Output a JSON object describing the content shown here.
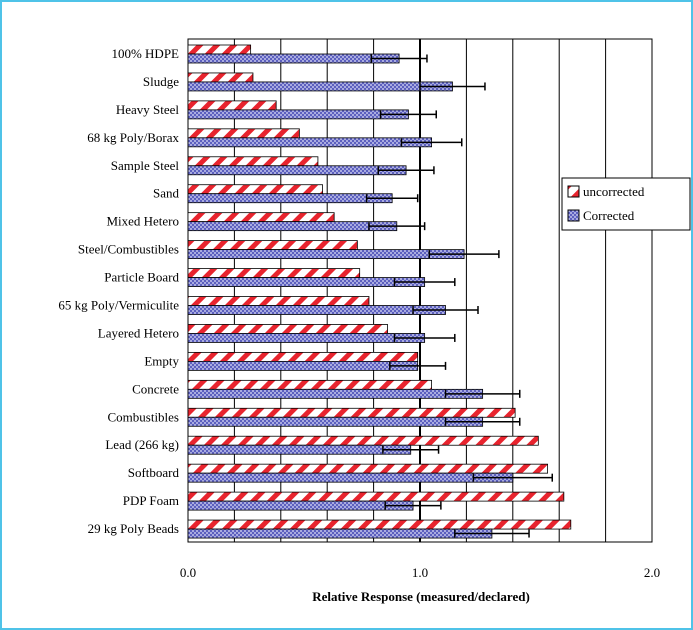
{
  "chart_data": {
    "type": "bar",
    "orientation": "horizontal",
    "title": "",
    "xlabel": "Relative Response (measured/declared)",
    "ylabel": "",
    "xlim": [
      0,
      2.0
    ],
    "x_ticks": [
      "0.0",
      "1.0",
      "2.0"
    ],
    "grid": "vertical lines every 0.2",
    "legend_position": "right",
    "categories": [
      "100% HDPE",
      "Sludge",
      "Heavy Steel",
      "68 kg Poly/Borax",
      "Sample Steel",
      "Sand",
      "Mixed Hetero",
      "Steel/Combustibles",
      "Particle Board",
      "65 kg Poly/Vermiculite",
      "Layered Hetero",
      "Empty",
      "Concrete",
      "Combustibles",
      "Lead  (266 kg)",
      "Softboard",
      "PDP Foam",
      "29 kg Poly Beads"
    ],
    "series": [
      {
        "name": "uncorrected",
        "color": "#e8242e",
        "pattern": "diagonal-stripes",
        "values": [
          0.27,
          0.28,
          0.38,
          0.48,
          0.56,
          0.58,
          0.63,
          0.73,
          0.74,
          0.78,
          0.86,
          0.99,
          1.05,
          1.41,
          1.51,
          1.55,
          1.62,
          1.65
        ]
      },
      {
        "name": "Corrected",
        "color": "#6a6ec8",
        "pattern": "crosshatch",
        "values": [
          0.91,
          1.14,
          0.95,
          1.05,
          0.94,
          0.88,
          0.9,
          1.19,
          1.02,
          1.11,
          1.02,
          0.99,
          1.27,
          1.27,
          0.96,
          1.4,
          0.97,
          1.31
        ],
        "error": [
          0.12,
          0.14,
          0.12,
          0.13,
          0.12,
          0.11,
          0.12,
          0.15,
          0.13,
          0.14,
          0.13,
          0.12,
          0.16,
          0.16,
          0.12,
          0.17,
          0.12,
          0.16
        ]
      }
    ]
  }
}
